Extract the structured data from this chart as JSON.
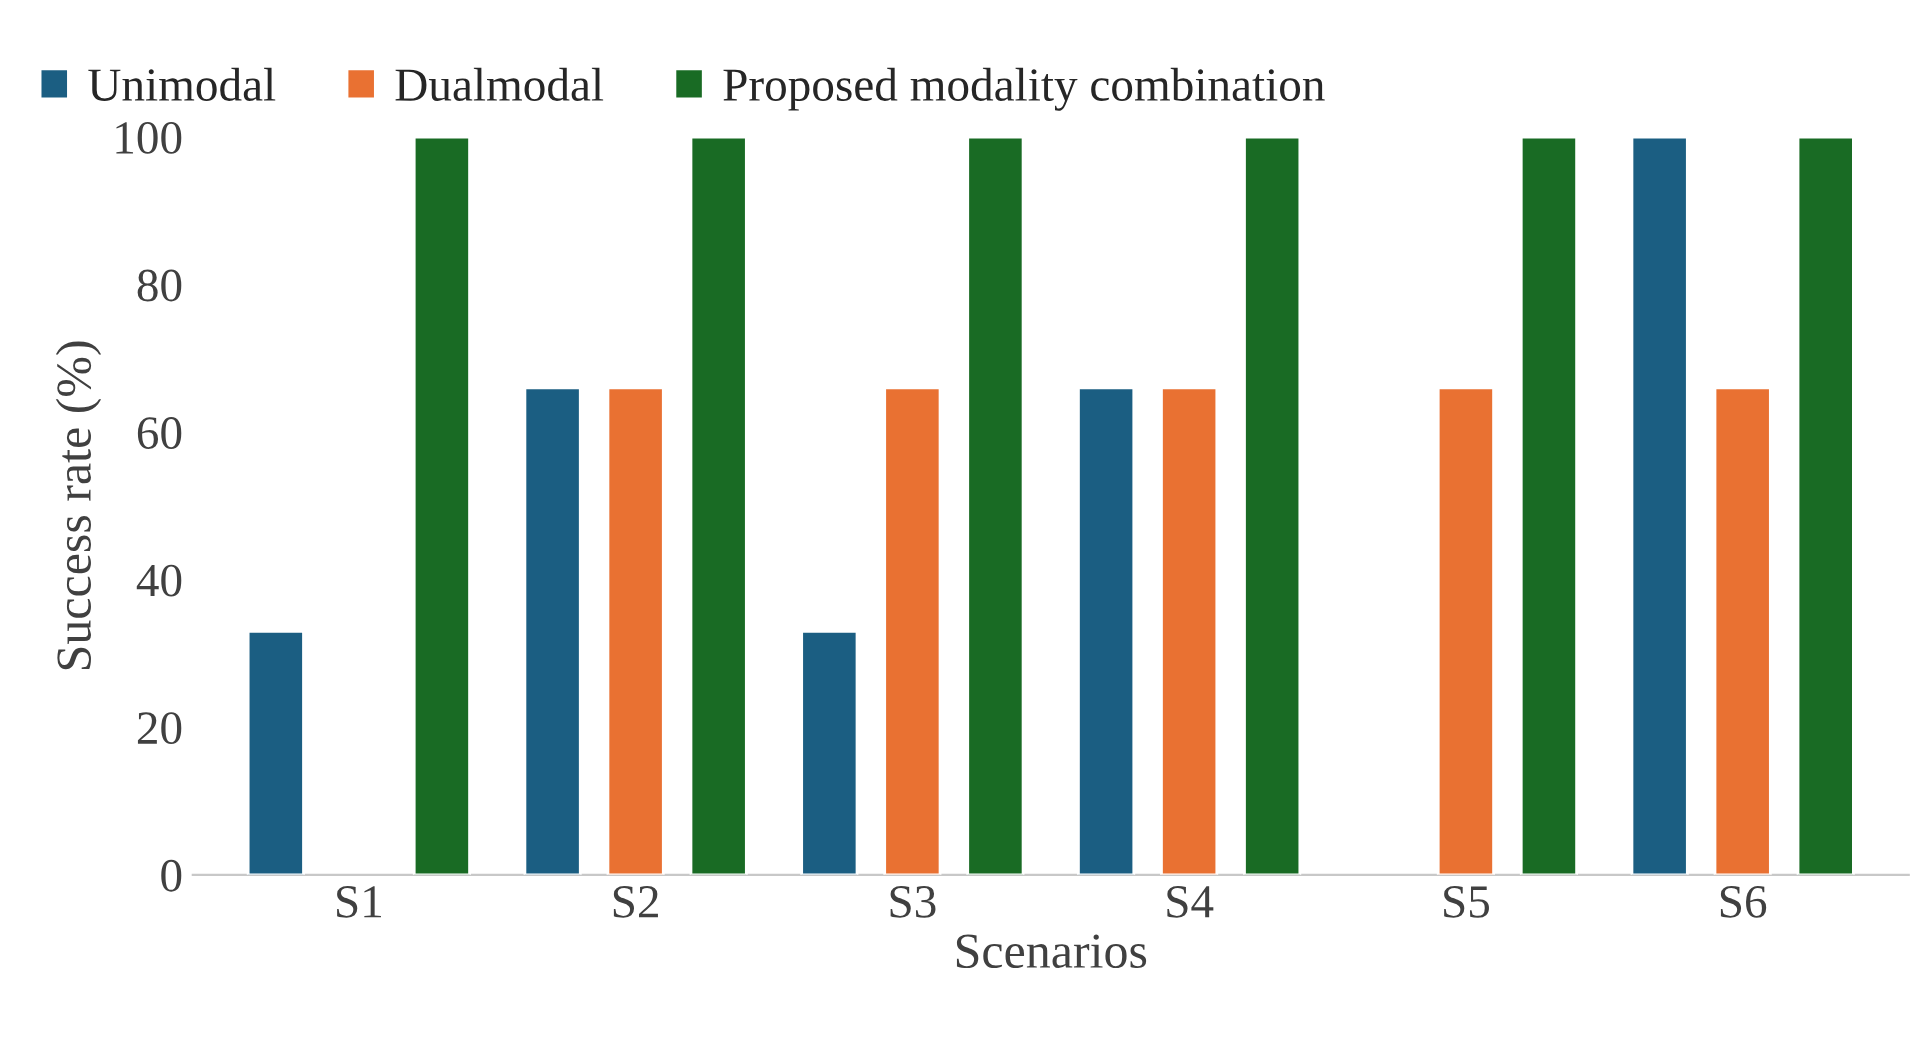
{
  "chart_data": {
    "type": "bar",
    "xlabel": "Scenarios",
    "ylabel": "Success rate (%)",
    "categories": [
      "S1",
      "S2",
      "S3",
      "S4",
      "S5",
      "S6"
    ],
    "series": [
      {
        "name": "Unimodal",
        "color": "#1b5e82",
        "values": [
          33,
          66,
          33,
          66,
          null,
          100
        ]
      },
      {
        "name": "Dualmodal",
        "color": "#e97132",
        "values": [
          null,
          66,
          66,
          66,
          66,
          66
        ]
      },
      {
        "name": "Proposed modality combination",
        "color": "#196b24",
        "values": [
          100,
          100,
          100,
          100,
          100,
          100
        ]
      }
    ],
    "ylim": [
      0,
      100
    ],
    "yticks": [
      0,
      20,
      40,
      60,
      80,
      100
    ],
    "grid": false,
    "legend": "top left"
  }
}
